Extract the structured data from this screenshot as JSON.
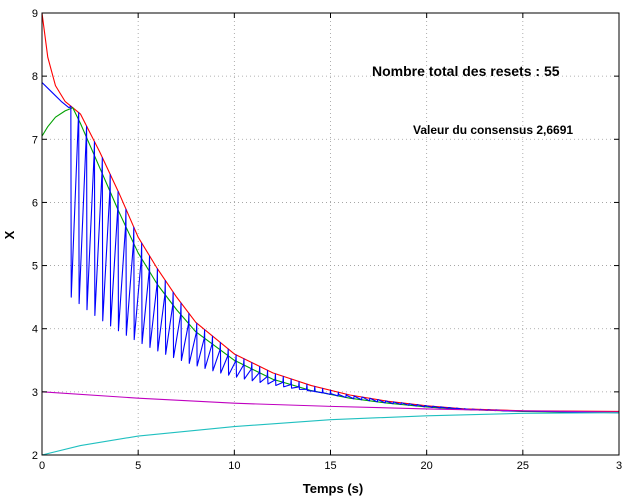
{
  "chart_data": {
    "type": "line",
    "xlabel": "Temps (s)",
    "ylabel": "X",
    "xlim": [
      0,
      30
    ],
    "ylim": [
      2,
      9
    ],
    "xticks": [
      "0",
      "5",
      "10",
      "15",
      "20",
      "25",
      "3"
    ],
    "yticks": [
      "2",
      "3",
      "4",
      "5",
      "6",
      "7",
      "8",
      "9"
    ],
    "grid": true,
    "annotations": [
      "Nombre total des resets : 55",
      "Valeur du consensus 2,6691"
    ],
    "series": [
      {
        "color": "#ff0000",
        "x": [
          0,
          0.3,
          0.7,
          1.2,
          1.6,
          2,
          3,
          4,
          5,
          6,
          7,
          8,
          10,
          12,
          14,
          16,
          18,
          20,
          22,
          25,
          30
        ],
        "values": [
          9.0,
          8.3,
          7.85,
          7.6,
          7.5,
          7.4,
          6.8,
          6.15,
          5.45,
          4.95,
          4.5,
          4.1,
          3.6,
          3.3,
          3.1,
          2.95,
          2.85,
          2.78,
          2.73,
          2.7,
          2.69
        ]
      },
      {
        "color": "#00a000",
        "x": [
          0,
          0.3,
          0.7,
          1.2,
          1.6,
          2,
          3,
          4,
          5,
          6,
          7,
          8,
          10,
          12,
          14,
          16,
          18,
          20,
          22,
          25,
          30
        ],
        "values": [
          7.05,
          7.2,
          7.35,
          7.45,
          7.5,
          7.25,
          6.55,
          5.85,
          5.2,
          4.7,
          4.3,
          3.95,
          3.5,
          3.2,
          3.02,
          2.9,
          2.82,
          2.76,
          2.72,
          2.69,
          2.67
        ]
      },
      {
        "color": "#0000ff",
        "x": [
          0,
          0.5,
          1,
          1.4,
          30
        ],
        "values": [
          7.9,
          7.75,
          7.6,
          7.5,
          2.67
        ],
        "sawtooth": {
          "x_start": 1.5,
          "x_end": 24,
          "teeth": 55,
          "minima": [
            4.5,
            2.72
          ]
        }
      },
      {
        "color": "#c000c0",
        "x": [
          0,
          5,
          10,
          15,
          20,
          25,
          30
        ],
        "values": [
          3.0,
          2.9,
          2.82,
          2.77,
          2.73,
          2.7,
          2.68
        ]
      },
      {
        "color": "#20c0c0",
        "x": [
          0,
          2,
          5,
          10,
          15,
          20,
          25,
          30
        ],
        "values": [
          2.0,
          2.15,
          2.3,
          2.45,
          2.56,
          2.62,
          2.66,
          2.67
        ]
      }
    ]
  }
}
